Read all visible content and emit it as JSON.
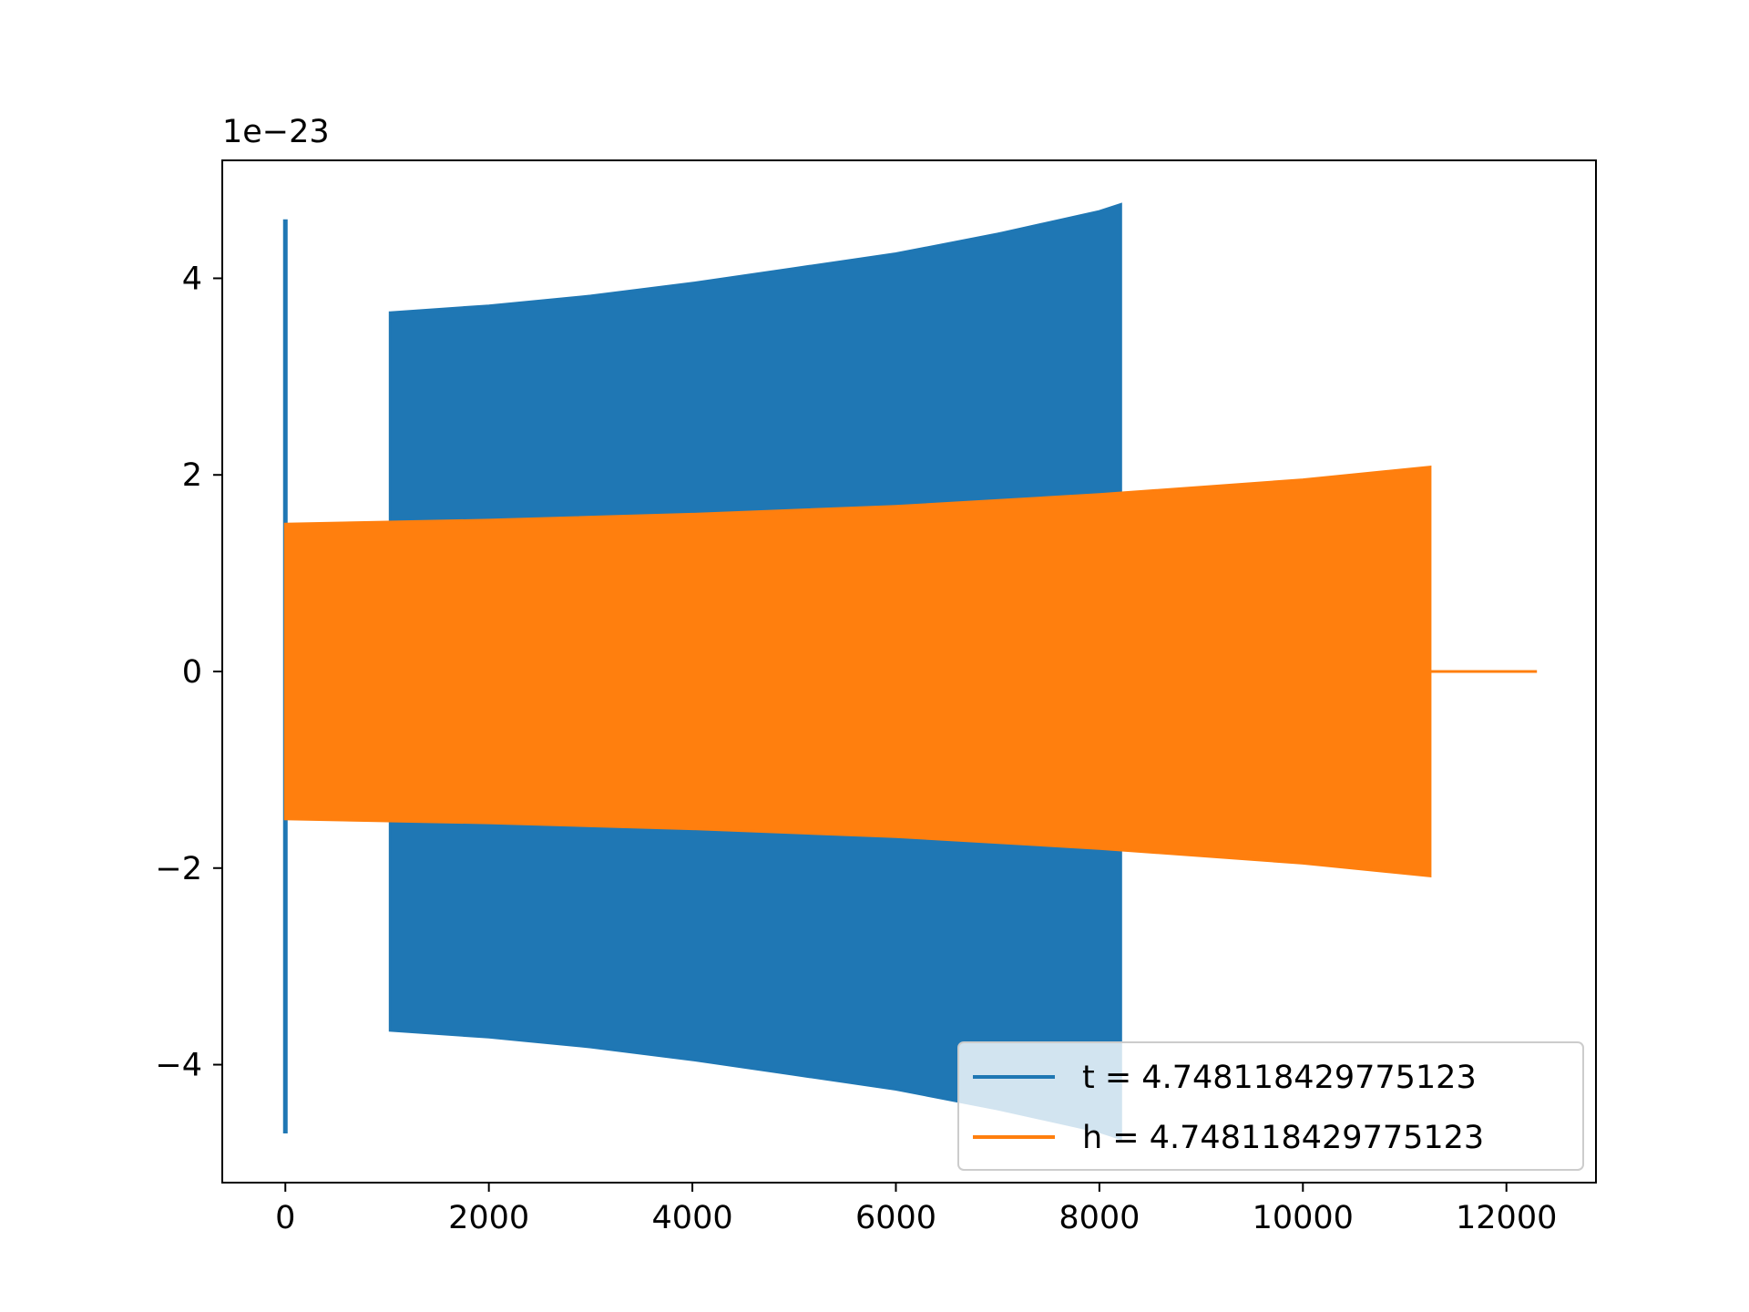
{
  "chart_data": {
    "type": "line",
    "title": "",
    "xlabel": "",
    "ylabel": "",
    "xlim": [
      -620,
      12880
    ],
    "ylim": [
      -5.2,
      5.2
    ],
    "y_offset_text": "1e−23",
    "x_ticks": [
      {
        "value": 0,
        "label": "0"
      },
      {
        "value": 2000,
        "label": "2000"
      },
      {
        "value": 4000,
        "label": "4000"
      },
      {
        "value": 6000,
        "label": "6000"
      },
      {
        "value": 8000,
        "label": "8000"
      },
      {
        "value": 10000,
        "label": "10000"
      },
      {
        "value": 12000,
        "label": "12000"
      }
    ],
    "y_ticks": [
      {
        "value": -4,
        "label": "−4"
      },
      {
        "value": -2,
        "label": "−2"
      },
      {
        "value": 0,
        "label": "0"
      },
      {
        "value": 2,
        "label": "2"
      },
      {
        "value": 4,
        "label": "4"
      }
    ],
    "grid": false,
    "legend_position": "lower-right",
    "series": [
      {
        "name": "t = 4.748118429775123",
        "color": "#1f77b4",
        "spike": {
          "x": 0,
          "ymax": 4.6,
          "ymin": -4.7
        },
        "envelope": {
          "x": [
            1030,
            2000,
            3000,
            4000,
            5000,
            6000,
            7000,
            8000,
            8210
          ],
          "amplitude": [
            3.65,
            3.72,
            3.82,
            3.95,
            4.1,
            4.25,
            4.45,
            4.68,
            4.75
          ]
        }
      },
      {
        "name": "h = 4.748118429775123",
        "color": "#ff7f0e",
        "envelope": {
          "x": [
            0,
            2000,
            4000,
            6000,
            8000,
            10000,
            11250
          ],
          "amplitude": [
            1.5,
            1.54,
            1.6,
            1.68,
            1.8,
            1.95,
            2.08
          ]
        },
        "tail": {
          "x": [
            11250,
            12300
          ],
          "y": 0
        }
      }
    ]
  }
}
